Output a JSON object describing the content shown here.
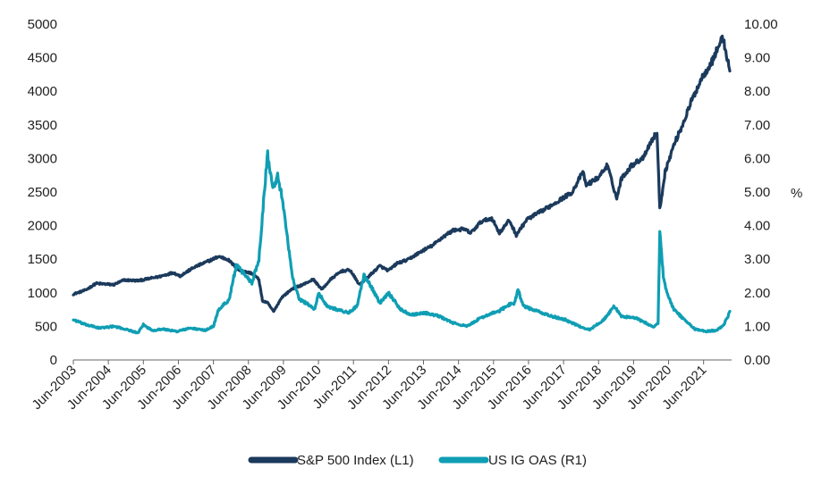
{
  "chart_data": {
    "type": "line",
    "title": "",
    "xlabel": "",
    "ylabel_left": "",
    "ylabel_right": "%",
    "ylim_left": [
      0,
      5000
    ],
    "ylim_right": [
      0,
      10
    ],
    "grid": false,
    "legend_position": "bottom",
    "x_tick_labels": [
      "Jun-2003",
      "Jun-2004",
      "Jun-2005",
      "Jun-2006",
      "Jun-2007",
      "Jun-2008",
      "Jun-2009",
      "Jun-2010",
      "Jun-2011",
      "Jun-2012",
      "Jun-2013",
      "Jun-2014",
      "Jun-2015",
      "Jun-2016",
      "Jun-2017",
      "Jun-2018",
      "Jun-2019",
      "Jun-2020",
      "Jun-2021"
    ],
    "left_tick_labels": [
      "0",
      "500",
      "1000",
      "1500",
      "2000",
      "2500",
      "3000",
      "3500",
      "4000",
      "4500",
      "5000"
    ],
    "right_tick_labels": [
      "0.00",
      "1.00",
      "2.00",
      "3.00",
      "4.00",
      "5.00",
      "6.00",
      "7.00",
      "8.00",
      "9.00",
      "10.00"
    ],
    "series": [
      {
        "name": "S&P 500 Index (L1)",
        "axis": "left",
        "color": "#1b3a5c",
        "points": [
          [
            2003.45,
            980
          ],
          [
            2003.8,
            1040
          ],
          [
            2004.1,
            1140
          ],
          [
            2004.6,
            1120
          ],
          [
            2004.9,
            1190
          ],
          [
            2005.3,
            1180
          ],
          [
            2005.6,
            1210
          ],
          [
            2005.9,
            1240
          ],
          [
            2006.3,
            1300
          ],
          [
            2006.5,
            1250
          ],
          [
            2006.9,
            1380
          ],
          [
            2007.3,
            1470
          ],
          [
            2007.6,
            1540
          ],
          [
            2007.85,
            1500
          ],
          [
            2008.2,
            1330
          ],
          [
            2008.55,
            1290
          ],
          [
            2008.75,
            1200
          ],
          [
            2008.85,
            880
          ],
          [
            2009.0,
            850
          ],
          [
            2009.17,
            720
          ],
          [
            2009.4,
            930
          ],
          [
            2009.7,
            1060
          ],
          [
            2010.0,
            1120
          ],
          [
            2010.3,
            1200
          ],
          [
            2010.55,
            1050
          ],
          [
            2010.8,
            1200
          ],
          [
            2011.1,
            1320
          ],
          [
            2011.35,
            1340
          ],
          [
            2011.62,
            1120
          ],
          [
            2011.9,
            1250
          ],
          [
            2012.2,
            1400
          ],
          [
            2012.45,
            1330
          ],
          [
            2012.7,
            1440
          ],
          [
            2013.0,
            1490
          ],
          [
            2013.4,
            1620
          ],
          [
            2013.7,
            1700
          ],
          [
            2014.0,
            1830
          ],
          [
            2014.3,
            1930
          ],
          [
            2014.6,
            1950
          ],
          [
            2014.8,
            1890
          ],
          [
            2015.1,
            2060
          ],
          [
            2015.4,
            2110
          ],
          [
            2015.62,
            1890
          ],
          [
            2015.9,
            2080
          ],
          [
            2016.1,
            1860
          ],
          [
            2016.4,
            2090
          ],
          [
            2016.7,
            2180
          ],
          [
            2017.0,
            2270
          ],
          [
            2017.4,
            2400
          ],
          [
            2017.7,
            2500
          ],
          [
            2018.0,
            2800
          ],
          [
            2018.1,
            2600
          ],
          [
            2018.45,
            2720
          ],
          [
            2018.7,
            2900
          ],
          [
            2018.97,
            2400
          ],
          [
            2019.1,
            2700
          ],
          [
            2019.4,
            2900
          ],
          [
            2019.7,
            3000
          ],
          [
            2020.0,
            3300
          ],
          [
            2020.12,
            3380
          ],
          [
            2020.2,
            2240
          ],
          [
            2020.35,
            2800
          ],
          [
            2020.6,
            3200
          ],
          [
            2020.85,
            3500
          ],
          [
            2021.1,
            3850
          ],
          [
            2021.4,
            4200
          ],
          [
            2021.7,
            4450
          ],
          [
            2021.9,
            4700
          ],
          [
            2022.0,
            4800
          ],
          [
            2022.12,
            4500
          ],
          [
            2022.2,
            4300
          ]
        ]
      },
      {
        "name": "US IG OAS (R1)",
        "axis": "right",
        "color": "#0f9eb4",
        "points": [
          [
            2003.45,
            1.2
          ],
          [
            2003.8,
            1.05
          ],
          [
            2004.2,
            0.95
          ],
          [
            2004.6,
            1.0
          ],
          [
            2005.0,
            0.9
          ],
          [
            2005.3,
            0.8
          ],
          [
            2005.45,
            1.05
          ],
          [
            2005.7,
            0.88
          ],
          [
            2006.0,
            0.92
          ],
          [
            2006.4,
            0.85
          ],
          [
            2006.8,
            0.95
          ],
          [
            2007.2,
            0.88
          ],
          [
            2007.45,
            1.0
          ],
          [
            2007.6,
            1.5
          ],
          [
            2007.9,
            1.8
          ],
          [
            2008.1,
            2.8
          ],
          [
            2008.3,
            2.6
          ],
          [
            2008.55,
            2.3
          ],
          [
            2008.75,
            3.0
          ],
          [
            2008.95,
            5.6
          ],
          [
            2009.0,
            6.1
          ],
          [
            2009.15,
            5.2
          ],
          [
            2009.3,
            5.5
          ],
          [
            2009.5,
            4.2
          ],
          [
            2009.7,
            2.5
          ],
          [
            2009.9,
            1.8
          ],
          [
            2010.1,
            1.7
          ],
          [
            2010.35,
            1.5
          ],
          [
            2010.45,
            2.0
          ],
          [
            2010.7,
            1.6
          ],
          [
            2011.0,
            1.5
          ],
          [
            2011.3,
            1.4
          ],
          [
            2011.55,
            1.6
          ],
          [
            2011.75,
            2.5
          ],
          [
            2011.95,
            2.2
          ],
          [
            2012.2,
            1.7
          ],
          [
            2012.45,
            2.0
          ],
          [
            2012.8,
            1.5
          ],
          [
            2013.1,
            1.35
          ],
          [
            2013.5,
            1.4
          ],
          [
            2013.9,
            1.3
          ],
          [
            2014.3,
            1.1
          ],
          [
            2014.7,
            1.0
          ],
          [
            2015.0,
            1.2
          ],
          [
            2015.3,
            1.35
          ],
          [
            2015.6,
            1.45
          ],
          [
            2015.9,
            1.65
          ],
          [
            2016.05,
            1.7
          ],
          [
            2016.15,
            2.1
          ],
          [
            2016.3,
            1.6
          ],
          [
            2016.7,
            1.45
          ],
          [
            2017.1,
            1.3
          ],
          [
            2017.5,
            1.2
          ],
          [
            2017.9,
            1.0
          ],
          [
            2018.2,
            0.9
          ],
          [
            2018.6,
            1.2
          ],
          [
            2018.9,
            1.6
          ],
          [
            2019.1,
            1.3
          ],
          [
            2019.5,
            1.25
          ],
          [
            2019.8,
            1.1
          ],
          [
            2020.0,
            0.98
          ],
          [
            2020.15,
            1.1
          ],
          [
            2020.2,
            3.8
          ],
          [
            2020.3,
            2.5
          ],
          [
            2020.4,
            2.0
          ],
          [
            2020.6,
            1.5
          ],
          [
            2020.9,
            1.2
          ],
          [
            2021.2,
            0.92
          ],
          [
            2021.5,
            0.85
          ],
          [
            2021.8,
            0.88
          ],
          [
            2022.0,
            1.0
          ],
          [
            2022.15,
            1.3
          ],
          [
            2022.2,
            1.45
          ]
        ]
      }
    ]
  }
}
